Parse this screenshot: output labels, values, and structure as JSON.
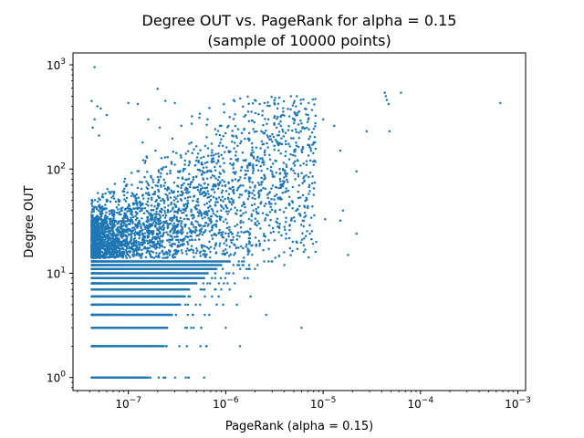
{
  "chart_data": {
    "type": "scatter",
    "title_line1": "Degree OUT vs. PageRank for alpha = 0.15",
    "title_line2": "(sample of 10000 points)",
    "xlabel": "PageRank (alpha = 0.15)",
    "ylabel": "Degree OUT",
    "x_scale": "log",
    "y_scale": "log",
    "xlim": [
      2.7e-08,
      0.0012
    ],
    "ylim": [
      0.75,
      1300
    ],
    "grid": false,
    "legend": "none",
    "marker_color": "#1f77b4",
    "x_ticks": [
      {
        "base": "10",
        "exp": "−7",
        "value": 1e-07
      },
      {
        "base": "10",
        "exp": "−6",
        "value": 1e-06
      },
      {
        "base": "10",
        "exp": "−5",
        "value": 1e-05
      },
      {
        "base": "10",
        "exp": "−4",
        "value": 0.0001
      },
      {
        "base": "10",
        "exp": "−3",
        "value": 0.001
      }
    ],
    "y_ticks": [
      {
        "base": "10",
        "exp": "0",
        "value": 1
      },
      {
        "base": "10",
        "exp": "1",
        "value": 10
      },
      {
        "base": "10",
        "exp": "2",
        "value": 100
      },
      {
        "base": "10",
        "exp": "3",
        "value": 1000
      }
    ],
    "points": [
      [
        4.5e-08,
        950
      ],
      [
        4.2e-08,
        450
      ],
      [
        4.8e-08,
        400
      ],
      [
        5.2e-08,
        380
      ],
      [
        4.5e-08,
        300
      ],
      [
        4.3e-08,
        250
      ],
      [
        6e-08,
        330
      ],
      [
        5e-08,
        210
      ],
      [
        1e-07,
        430
      ],
      [
        1.25e-07,
        420
      ],
      [
        2e-07,
        590
      ],
      [
        2.4e-07,
        450
      ],
      [
        3e-07,
        430
      ],
      [
        2.1e-07,
        250
      ],
      [
        1.6e-07,
        300
      ],
      [
        1.4e-07,
        180
      ],
      [
        1.9e-07,
        150
      ],
      [
        3.5e-07,
        260
      ],
      [
        4.5e-07,
        320
      ],
      [
        6.5e-07,
        300
      ],
      [
        9e-07,
        260
      ],
      [
        1.3e-06,
        200
      ],
      [
        2.5e-06,
        430
      ],
      [
        5e-06,
        430
      ],
      [
        7e-06,
        330
      ],
      [
        1e-05,
        300
      ],
      [
        1.3e-05,
        260
      ],
      [
        2.8e-05,
        230
      ],
      [
        4.3e-05,
        540
      ],
      [
        4.4e-05,
        500
      ],
      [
        4.5e-05,
        460
      ],
      [
        4.7e-05,
        420
      ],
      [
        6.3e-05,
        540
      ],
      [
        4.8e-05,
        230
      ],
      [
        0.00066,
        430
      ],
      [
        1.5e-05,
        150
      ],
      [
        2.2e-05,
        95
      ],
      [
        8e-06,
        180
      ],
      [
        5.5e-06,
        120
      ],
      [
        3.5e-06,
        170
      ],
      [
        1.6e-05,
        40
      ],
      [
        1.5e-05,
        32
      ],
      [
        1.05e-05,
        33
      ],
      [
        2.2e-05,
        24
      ],
      [
        1.8e-05,
        15
      ],
      [
        8.5e-06,
        20
      ],
      [
        6.5e-06,
        38
      ],
      [
        4.5e-06,
        45
      ],
      [
        3.2e-06,
        55
      ],
      [
        2.2e-06,
        30
      ],
      [
        1.6e-06,
        25
      ],
      [
        4e-06,
        12
      ],
      [
        3e-06,
        13
      ],
      [
        2.6e-06,
        4
      ],
      [
        6e-06,
        3
      ],
      [
        1.3e-06,
        5
      ],
      [
        1.8e-06,
        6
      ],
      [
        9e-07,
        7
      ],
      [
        1e-06,
        3
      ],
      [
        1.4e-06,
        2
      ],
      [
        6.5e-07,
        8
      ],
      [
        5.5e-07,
        2
      ],
      [
        6e-07,
        1
      ],
      [
        2.4e-07,
        1
      ],
      [
        2.3e-07,
        1
      ],
      [
        1.2e-06,
        12
      ],
      [
        1.1e-06,
        18
      ],
      [
        9.5e-07,
        22
      ],
      [
        8e-07,
        28
      ],
      [
        7e-07,
        35
      ],
      [
        1e-06,
        45
      ],
      [
        1.2e-06,
        60
      ],
      [
        8.5e-07,
        70
      ],
      [
        6e-07,
        55
      ],
      [
        5e-07,
        85
      ],
      [
        4e-07,
        65
      ],
      [
        3e-07,
        110
      ],
      [
        2.5e-07,
        90
      ],
      [
        1.8e-07,
        75
      ],
      [
        1.5e-07,
        120
      ]
    ],
    "band_rows": [
      {
        "y": 1,
        "x_end": 1.6e-07
      },
      {
        "y": 2,
        "x_end": 2.3e-07
      },
      {
        "y": 3,
        "x_end": 2.5e-07
      },
      {
        "y": 4,
        "x_end": 2.8e-07
      },
      {
        "y": 5,
        "x_end": 3.4e-07
      },
      {
        "y": 6,
        "x_end": 3.8e-07
      },
      {
        "y": 7,
        "x_end": 4.2e-07
      },
      {
        "y": 8,
        "x_end": 5e-07
      },
      {
        "y": 9,
        "x_end": 6e-07
      },
      {
        "y": 10,
        "x_end": 6.5e-07
      },
      {
        "y": 11,
        "x_end": 8e-07
      },
      {
        "y": 12,
        "x_end": 9e-07
      },
      {
        "y": 13,
        "x_end": 1.1e-06
      }
    ],
    "cloud_seed": 7,
    "cloud_count": 3200
  }
}
